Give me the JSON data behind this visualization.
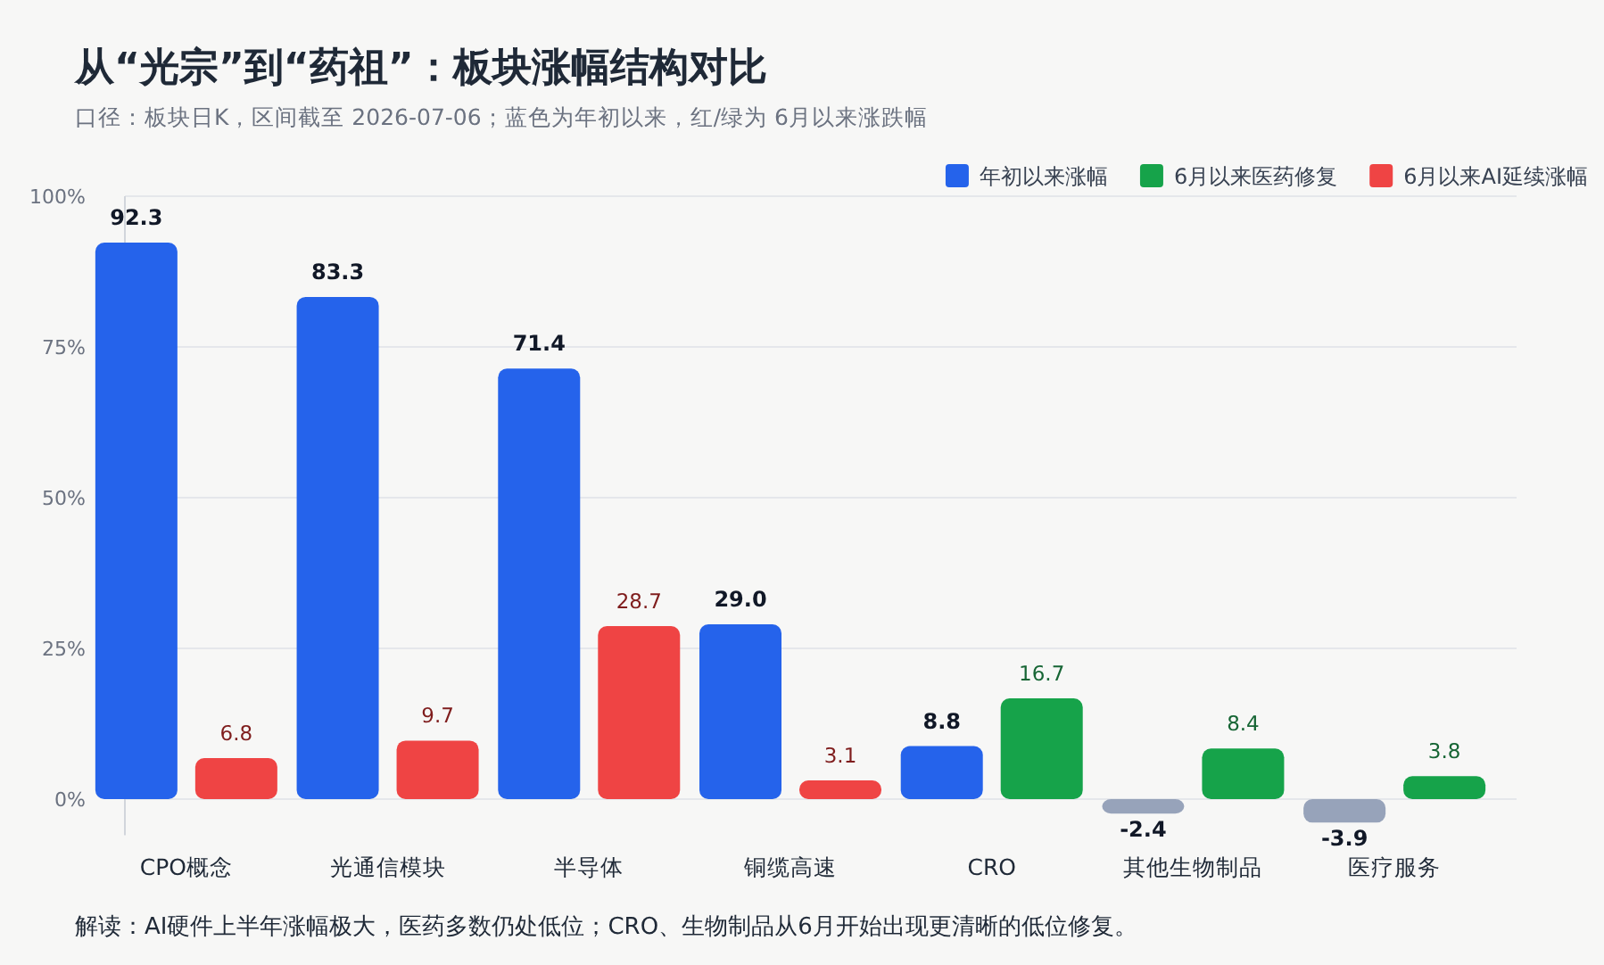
{
  "chart_data": {
    "type": "bar",
    "title": "从“光宗”到“药祖”：板块涨幅结构对比",
    "subtitle": "口径：板块日K，区间截至 2026-07-06；蓝色为年初以来，红/绿为 6月以来涨跌幅",
    "categories": [
      "CPO概念",
      "光通信模块",
      "半导体",
      "铜缆高速",
      "CRO",
      "其他生物制品",
      "医疗服务"
    ],
    "series": [
      {
        "name": "年初以来涨幅",
        "color": "#2563eb",
        "colors": [
          "#2563eb",
          "#2563eb",
          "#2563eb",
          "#2563eb",
          "#2563eb",
          "#97a3ba",
          "#97a3ba"
        ],
        "values": [
          92.3,
          83.3,
          71.4,
          29.0,
          8.8,
          -2.4,
          -3.9
        ],
        "value_labels": [
          "92.3",
          "83.3",
          "71.4",
          "29.0",
          "8.8",
          "-2.4",
          "-3.9"
        ]
      },
      {
        "name": "6月以来医药修复",
        "color": "#16a34a",
        "values": [
          null,
          null,
          null,
          null,
          16.7,
          8.4,
          3.8
        ],
        "value_labels": [
          null,
          null,
          null,
          null,
          "16.7",
          "8.4",
          "3.8"
        ]
      },
      {
        "name": "6月以来AI延续涨幅",
        "color": "#ef4444",
        "values": [
          6.8,
          9.7,
          28.7,
          3.1,
          null,
          null,
          null
        ],
        "value_labels": [
          "6.8",
          "9.7",
          "28.7",
          "3.1",
          null,
          null,
          null
        ]
      }
    ],
    "ylim": [
      -6,
      100
    ],
    "yticks": [
      {
        "value": 0,
        "label": "0%"
      },
      {
        "value": 25,
        "label": "25%"
      },
      {
        "value": 50,
        "label": "50%"
      },
      {
        "value": 75,
        "label": "75%"
      },
      {
        "value": 100,
        "label": "100%"
      }
    ],
    "grid": "y",
    "legend": "top right",
    "annotations": [
      "解读：AI硬件上半年涨幅极大，医药多数仍处低位；CRO、生物制品从6月开始出现更清晰的低位修复。"
    ]
  }
}
